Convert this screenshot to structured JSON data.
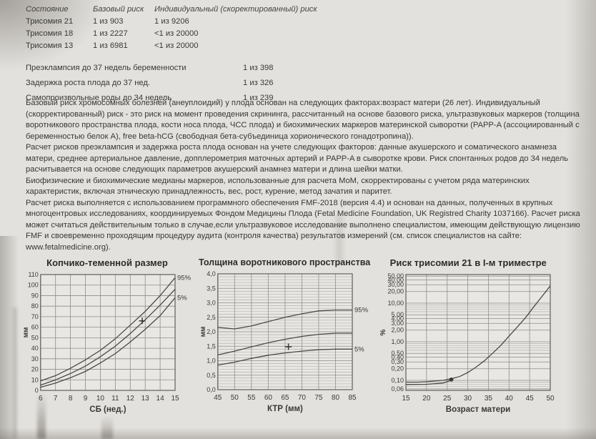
{
  "report": {
    "risk_table": {
      "headers": {
        "condition": "Состояние",
        "base": "Базовый риск",
        "adjusted": "Индивидуальный (скоректированный) риск"
      },
      "rows": [
        {
          "condition": "Трисомия 21",
          "base": "1 из 903",
          "adjusted": "1 из 9206"
        },
        {
          "condition": "Трисомия 18",
          "base": "1 из 2227",
          "adjusted": "<1 из 20000"
        },
        {
          "condition": "Трисомия 13",
          "base": "1 из 6981",
          "adjusted": "<1 из 20000"
        }
      ]
    },
    "other_risks": [
      {
        "label": "Преэклампсия до 37 недель беременности",
        "value": "1 из 398"
      },
      {
        "label": "Задержка роста плода до 37 нед.",
        "value": "1 из 326"
      },
      {
        "label": "Самопроизвольные роды до 34 недель",
        "value": "1 из 239"
      }
    ],
    "notes": [
      "Базовый риск хромосомных болезней (анеуплоидий) у плода основан на следующих факторах:возраст матери (26 лет). Индивидуальный (скорректированный) риск - это риск на момент проведения скрининга, рассчитанный на основе базового риска, ультразвуковых маркеров (толщина воротникового пространства плода, кости носа плода, ЧСС плода) и биохимических маркеров материнской сыворотки (PAPP-A (ассоциированный с беременностью белок A), free beta-hCG (свободная бета-субъединица хорионического гонадотропина)).",
      "Расчет рисков преэклампсия и задержка роста плода основан на учете следующих факторов: данные акушерского и соматического анамнеза матери, среднее артериальное давление, допплерометрия маточных артерий и PAPP-A в сыворотке крови.  Риск спонтанных родов до 34 недель расчитывается на основе следующих параметров акушерский анамнез матери и длина шейки матки.",
      "Биофизические и биохимические медианы маркеров, использованные для расчета MoM, скорректированы с учетом ряда материнских характеристик, включая этническую принадлежность, вес, рост, курение, метод зачатия и паритет.",
      "Расчет риска выполняется с использованием программного обеспечения FMF-2018 (версия 4.4) и основан на данных, полученных в крупных многоцентровых исследованиях, координируемых Фондом Медицины Плода (Fetal Medicine Foundation, UK Registred Charity 1037166). Расчет риска может считаться действительным только в случае,если ультразвуковое исследование выполнено специалистом, имеющим действующую лицензию FMF и своевременно проходящим процедуру аудита (контроля качества) результатов измерений (см. список специалистов на сайте: www.fetalmedicine.org)."
    ]
  },
  "colors": {
    "paper": "#e3e1dd",
    "plot_bg": "#e9e7e3",
    "grid_major": "#8f8d89",
    "grid_minor": "#aaa8a4",
    "curve": "#4a4846",
    "border": "#55534f",
    "text": "#3b3935"
  },
  "chart_data": [
    {
      "type": "line",
      "title": "Копчико-теменной размер",
      "xlabel": "СБ (нед.)",
      "ylabel": "мм",
      "xlim": [
        6,
        15
      ],
      "xticks": [
        6,
        7,
        8,
        9,
        10,
        11,
        12,
        13,
        14,
        15
      ],
      "ylim": [
        0,
        110
      ],
      "yscale": "linear",
      "yticks": [
        [
          110,
          "110"
        ],
        [
          100,
          "100"
        ],
        [
          90,
          "90"
        ],
        [
          80,
          "80"
        ],
        [
          70,
          "70"
        ],
        [
          60,
          "60"
        ],
        [
          50,
          "50"
        ],
        [
          40,
          "40"
        ],
        [
          30,
          "30"
        ],
        [
          20,
          "20"
        ],
        [
          10,
          "10"
        ],
        [
          0,
          "0"
        ]
      ],
      "y_minor": [],
      "grid": true,
      "legend_position": "right-edge",
      "series": [
        {
          "name": "95th-percentile",
          "end_label": "95%",
          "x": [
            6,
            7,
            8,
            9,
            10,
            11,
            12,
            13,
            14,
            15
          ],
          "y": [
            9,
            14,
            21,
            29,
            38,
            49,
            62,
            75,
            90,
            107
          ]
        },
        {
          "name": "median",
          "x": [
            6,
            7,
            8,
            9,
            10,
            11,
            12,
            13,
            14,
            15
          ],
          "y": [
            5,
            10,
            16,
            23,
            32,
            42,
            54,
            67,
            81,
            96
          ]
        },
        {
          "name": "5th-percentile",
          "end_label": "5%",
          "x": [
            6,
            7,
            8,
            9,
            10,
            11,
            12,
            13,
            14,
            15
          ],
          "y": [
            3,
            7,
            12,
            18,
            26,
            35,
            46,
            58,
            71,
            88
          ]
        }
      ],
      "markers": [
        {
          "type": "cross",
          "x": 12.8,
          "y": 66
        }
      ]
    },
    {
      "type": "line",
      "title": "Толщина воротникового пространства",
      "xlabel": "КТР (мм)",
      "ylabel": "мм",
      "xlim": [
        45,
        85
      ],
      "xticks": [
        45,
        50,
        55,
        60,
        65,
        70,
        75,
        80,
        85
      ],
      "ylim": [
        0,
        4
      ],
      "yscale": "linear",
      "yticks": [
        [
          4,
          "4,0"
        ],
        [
          3.5,
          "3,5"
        ],
        [
          3,
          "3,0"
        ],
        [
          2.5,
          "2,5"
        ],
        [
          2,
          "2,0"
        ],
        [
          1.5,
          "1,5"
        ],
        [
          1,
          "1,0"
        ],
        [
          0.5,
          "0,5"
        ],
        [
          0,
          "0,0"
        ]
      ],
      "y_minor": [
        0.1,
        0.2,
        0.3,
        0.4,
        0.6,
        0.7,
        0.8,
        0.9,
        1.1,
        1.2,
        1.3,
        1.4,
        1.6,
        1.7,
        1.8,
        1.9,
        2.1,
        2.2,
        2.3,
        2.4,
        2.6,
        2.7,
        2.8,
        2.9,
        3.1,
        3.2,
        3.3,
        3.4,
        3.6,
        3.7,
        3.8,
        3.9
      ],
      "grid": true,
      "legend_position": "right-edge",
      "series": [
        {
          "name": "95th-percentile",
          "end_label": "95%",
          "x": [
            45,
            50,
            55,
            60,
            65,
            70,
            75,
            80,
            85
          ],
          "y": [
            2.15,
            2.1,
            2.2,
            2.35,
            2.5,
            2.62,
            2.72,
            2.75,
            2.75
          ]
        },
        {
          "name": "median",
          "x": [
            45,
            50,
            55,
            60,
            65,
            70,
            75,
            80,
            85
          ],
          "y": [
            1.2,
            1.33,
            1.48,
            1.62,
            1.74,
            1.84,
            1.91,
            1.95,
            1.95
          ]
        },
        {
          "name": "5th-percentile",
          "end_label": "5%",
          "x": [
            45,
            50,
            55,
            60,
            65,
            70,
            75,
            80,
            85
          ],
          "y": [
            0.85,
            0.95,
            1.08,
            1.19,
            1.27,
            1.33,
            1.38,
            1.4,
            1.4
          ]
        }
      ],
      "markers": [
        {
          "type": "cross",
          "x": 66,
          "y": 1.48
        }
      ]
    },
    {
      "type": "line",
      "title": "Риск трисомии 21 в I-м триместре",
      "xlabel": "Возраст матери",
      "ylabel": "%",
      "xlim": [
        15,
        50
      ],
      "xticks": [
        15,
        20,
        25,
        30,
        35,
        40,
        45,
        50
      ],
      "ylim": [
        0.055,
        55
      ],
      "yscale": "log",
      "yticks": [
        [
          50,
          "50,00"
        ],
        [
          40,
          "40,00"
        ],
        [
          30,
          "30,00"
        ],
        [
          20,
          "20,00"
        ],
        [
          10,
          "10,00"
        ],
        [
          5,
          "5,00"
        ],
        [
          4,
          "4,00"
        ],
        [
          3,
          "3,00"
        ],
        [
          2,
          "2,00"
        ],
        [
          1,
          "1,00"
        ],
        [
          0.5,
          "0,50"
        ],
        [
          0.4,
          "0,40"
        ],
        [
          0.3,
          "0,30"
        ],
        [
          0.2,
          "0,20"
        ],
        [
          0.1,
          "0,10"
        ],
        [
          0.06,
          "0,06"
        ]
      ],
      "y_minor": [
        0.07,
        0.08,
        0.09,
        0.6,
        0.7,
        0.8,
        0.9,
        6,
        7,
        8,
        9
      ],
      "grid": true,
      "legend_position": "none",
      "series": [
        {
          "name": "maternal-age-risk",
          "x": [
            15,
            18,
            20,
            22,
            24,
            26,
            28,
            30,
            32,
            34,
            36,
            38,
            40,
            42,
            44,
            46,
            48,
            50
          ],
          "y": [
            0.09,
            0.09,
            0.092,
            0.096,
            0.1,
            0.11,
            0.125,
            0.16,
            0.22,
            0.32,
            0.5,
            0.8,
            1.4,
            2.4,
            4.2,
            8,
            15,
            28
          ]
        },
        {
          "name": "secondary-trace",
          "x": [
            15,
            20,
            24,
            26.5
          ],
          "y": [
            0.078,
            0.079,
            0.085,
            0.105
          ]
        }
      ],
      "markers": [
        {
          "type": "dot",
          "x": 26,
          "y": 0.105
        }
      ]
    }
  ]
}
